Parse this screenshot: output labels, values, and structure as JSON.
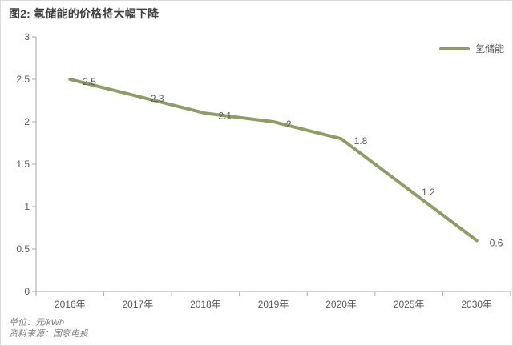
{
  "title": "图2: 氢储能的价格将大幅下降",
  "legend": {
    "label": "氢储能"
  },
  "footer": {
    "unit": "单位：元/kWh",
    "source": "资料来源：国家电投"
  },
  "chart_data": {
    "type": "line",
    "title": "图2: 氢储能的价格将大幅下降",
    "categories": [
      "2016年",
      "2017年",
      "2018年",
      "2019年",
      "2020年",
      "2025年",
      "2030年"
    ],
    "series": [
      {
        "name": "氢储能",
        "values": [
          2.5,
          2.3,
          2.1,
          2,
          1.8,
          1.2,
          0.6
        ]
      }
    ],
    "data_labels": [
      "2.5",
      "2.3",
      "2.1",
      "2",
      "1.8",
      "1.2",
      "0.6"
    ],
    "xlabel": "",
    "ylabel": "",
    "unit": "元/kWh",
    "ylim": [
      0,
      3
    ],
    "yticks": [
      0,
      0.5,
      1,
      1.5,
      2,
      2.5,
      3
    ],
    "grid": false,
    "legend_position": "top-right",
    "colors": {
      "line": "#8d9d64",
      "axis": "#a6a6a6",
      "tick_text": "#595959"
    }
  }
}
